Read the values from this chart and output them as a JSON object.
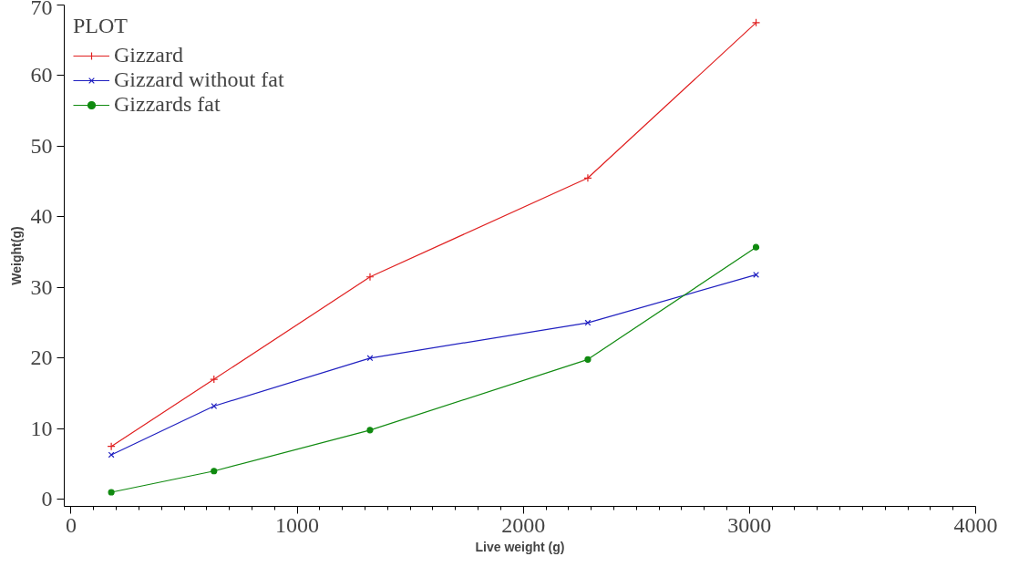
{
  "chart_data": {
    "type": "line",
    "xlabel": "Live weight (g)",
    "ylabel": "Weight(g)",
    "legend_title": "PLOT",
    "x": [
      178,
      632,
      1322,
      2285,
      3029
    ],
    "series": [
      {
        "name": "Gizzard",
        "color": "#e02020",
        "marker": "cross",
        "values": [
          7.5,
          17,
          31.5,
          45.5,
          67.5
        ]
      },
      {
        "name": "Gizzard without fat",
        "color": "#2020c0",
        "marker": "x",
        "values": [
          6.3,
          13.2,
          20,
          25,
          31.8
        ]
      },
      {
        "name": "Gizzards fat",
        "color": "#108a10",
        "marker": "circle",
        "values": [
          1,
          4,
          9.8,
          19.8,
          35.7
        ]
      }
    ],
    "xlim": [
      -30,
      4000
    ],
    "ylim": [
      -1,
      70
    ],
    "xticks": [
      0,
      1000,
      2000,
      3000,
      4000
    ],
    "yticks": [
      0,
      10,
      20,
      30,
      40,
      50,
      60,
      70
    ],
    "grid": false,
    "legend": "top left",
    "line_style": "solid"
  }
}
